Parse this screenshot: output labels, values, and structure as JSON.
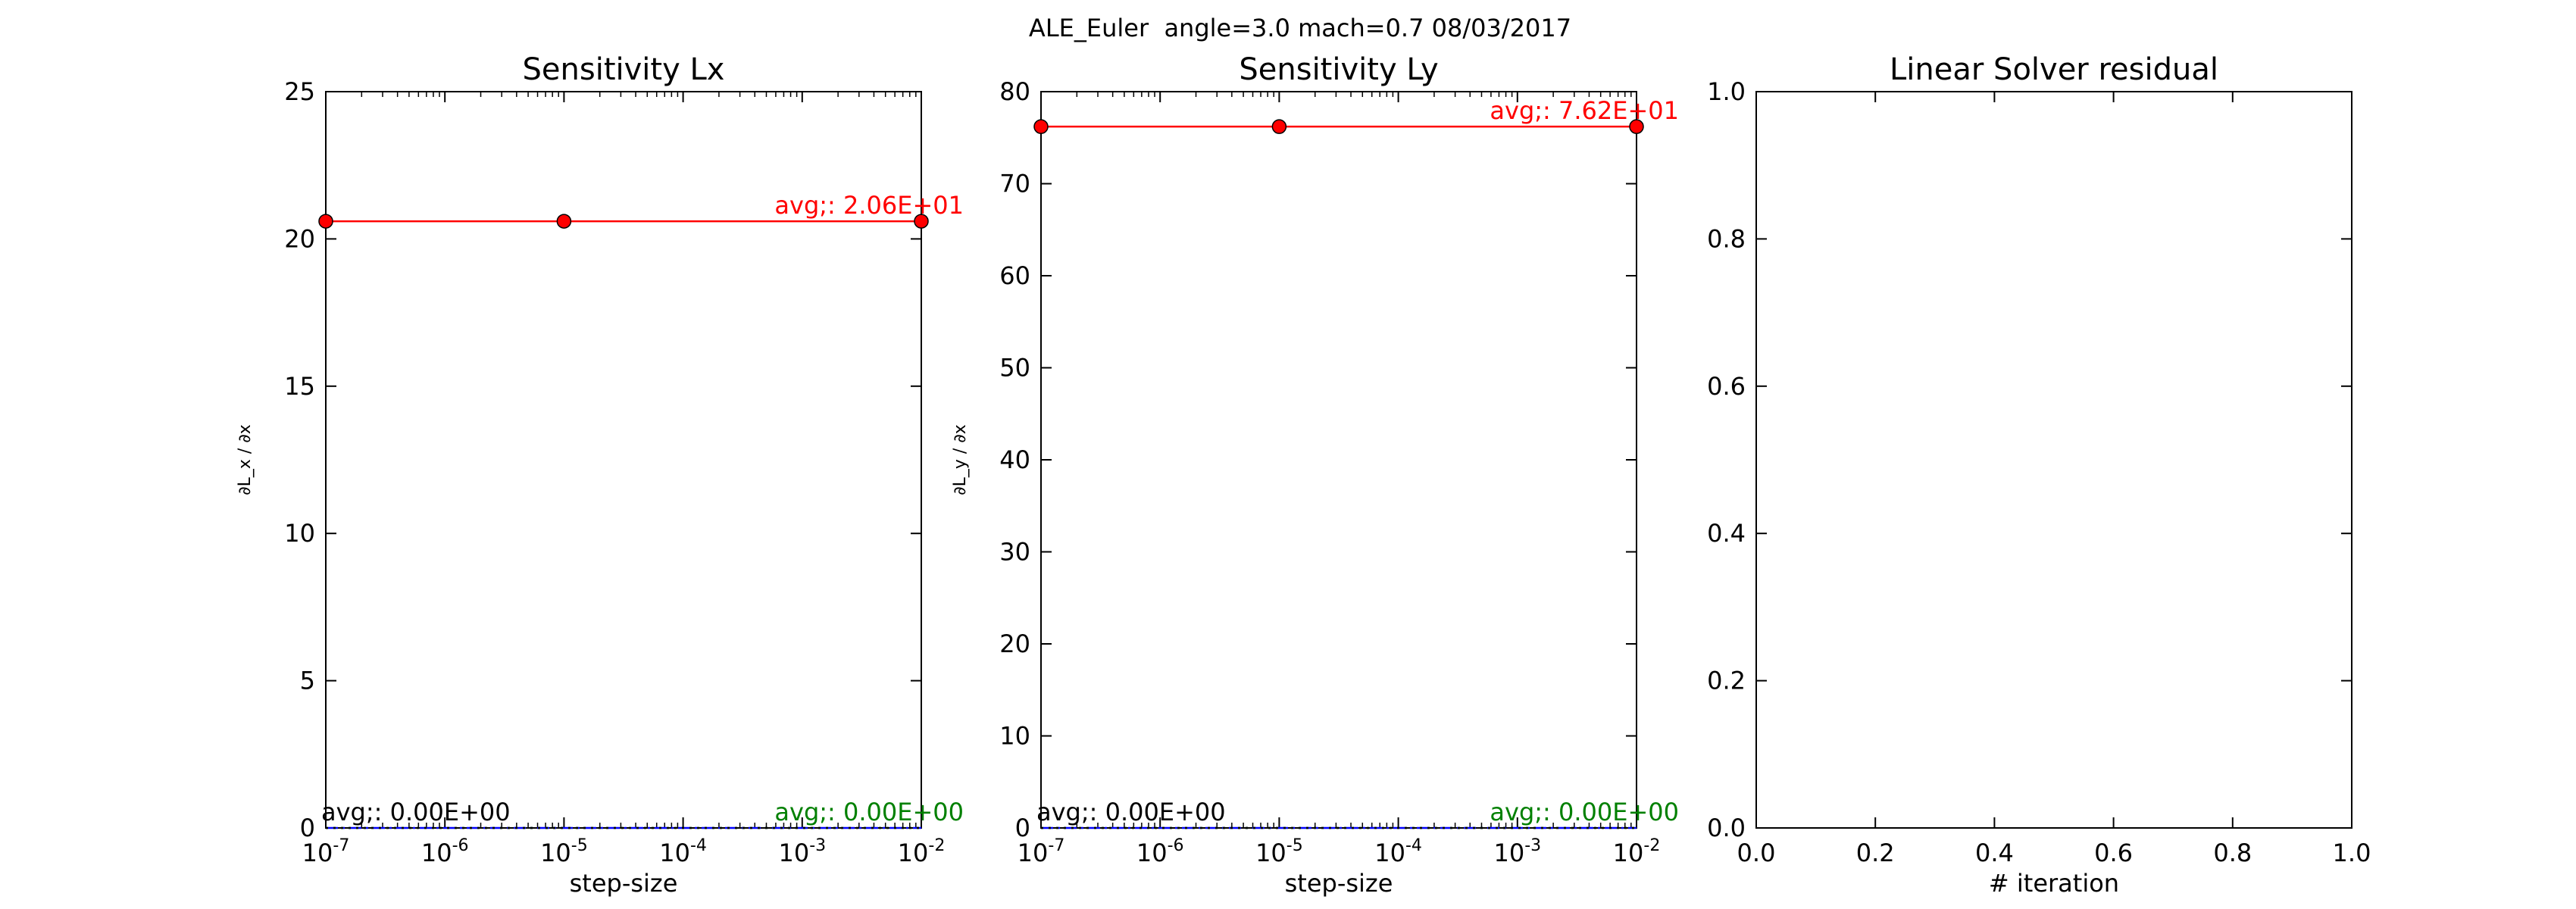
{
  "figure": {
    "title": "ALE_Euler  angle=3.0 mach=0.7 08/03/2017"
  },
  "chart_data": [
    {
      "type": "line",
      "title": "Sensitivity Lx",
      "xlabel": "step-size",
      "ylabel": "∂L_x / ∂x",
      "xscale": "log",
      "xlim": [
        1e-07,
        0.01
      ],
      "ylim": [
        0,
        25
      ],
      "xticks": [
        "10^-7",
        "10^-6",
        "10^-5",
        "10^-4",
        "10^-3",
        "10^-2"
      ],
      "yticks": [
        "0",
        "5",
        "10",
        "15",
        "20",
        "25"
      ],
      "grid": false,
      "series": [
        {
          "color": "#ff0000",
          "marker": "circle",
          "linestyle": "solid",
          "x": [
            1e-07,
            1e-05,
            0.01
          ],
          "y": [
            20.6,
            20.6,
            20.6
          ]
        },
        {
          "color": "#0000ff",
          "marker": "none",
          "linestyle": "dashdot",
          "x": [
            1e-07,
            0.01
          ],
          "y": [
            0,
            0
          ]
        },
        {
          "color": "#008000",
          "marker": "none",
          "linestyle": "dotted",
          "x": [
            1e-07,
            0.01
          ],
          "y": [
            0,
            0
          ]
        },
        {
          "color": "#000000",
          "marker": "none",
          "linestyle": "dotted",
          "x": [
            1e-07,
            0.01
          ],
          "y": [
            0,
            0
          ]
        }
      ],
      "annotations": [
        {
          "text": "avg;: 2.06E+01",
          "color": "#ff0000",
          "x": 0.01,
          "y": 20.6,
          "anchor": "end"
        },
        {
          "text": "avg;: 0.00E+00",
          "color": "#000000",
          "x": 1e-07,
          "y": 0,
          "anchor": "start"
        },
        {
          "text": "avg;: 0.00E+00",
          "color": "#008000",
          "x": 0.01,
          "y": 0,
          "anchor": "end"
        }
      ]
    },
    {
      "type": "line",
      "title": "Sensitivity Ly",
      "xlabel": "step-size",
      "ylabel": "∂L_y / ∂x",
      "xscale": "log",
      "xlim": [
        1e-07,
        0.01
      ],
      "ylim": [
        0,
        80
      ],
      "xticks": [
        "10^-7",
        "10^-6",
        "10^-5",
        "10^-4",
        "10^-3",
        "10^-2"
      ],
      "yticks": [
        "0",
        "10",
        "20",
        "30",
        "40",
        "50",
        "60",
        "70",
        "80"
      ],
      "grid": false,
      "series": [
        {
          "color": "#ff0000",
          "marker": "circle",
          "linestyle": "solid",
          "x": [
            1e-07,
            1e-05,
            0.01
          ],
          "y": [
            76.2,
            76.2,
            76.2
          ]
        },
        {
          "color": "#0000ff",
          "marker": "none",
          "linestyle": "dashdot",
          "x": [
            1e-07,
            0.01
          ],
          "y": [
            0,
            0
          ]
        },
        {
          "color": "#008000",
          "marker": "none",
          "linestyle": "dotted",
          "x": [
            1e-07,
            0.01
          ],
          "y": [
            0,
            0
          ]
        },
        {
          "color": "#000000",
          "marker": "none",
          "linestyle": "dotted",
          "x": [
            1e-07,
            0.01
          ],
          "y": [
            0,
            0
          ]
        }
      ],
      "annotations": [
        {
          "text": "avg;: 7.62E+01",
          "color": "#ff0000",
          "x": 0.01,
          "y": 76.2,
          "anchor": "end"
        },
        {
          "text": "avg;: 0.00E+00",
          "color": "#000000",
          "x": 1e-07,
          "y": 0,
          "anchor": "start"
        },
        {
          "text": "avg;: 0.00E+00",
          "color": "#008000",
          "x": 0.01,
          "y": 0,
          "anchor": "end"
        }
      ]
    },
    {
      "type": "line",
      "title": "Linear Solver residual",
      "xlabel": "# iteration",
      "ylabel": "",
      "xscale": "linear",
      "xlim": [
        0,
        1
      ],
      "ylim": [
        0,
        1
      ],
      "xticks": [
        "0.0",
        "0.2",
        "0.4",
        "0.6",
        "0.8",
        "1.0"
      ],
      "yticks": [
        "0.0",
        "0.2",
        "0.4",
        "0.6",
        "0.8",
        "1.0"
      ],
      "grid": false,
      "series": [],
      "annotations": []
    }
  ]
}
